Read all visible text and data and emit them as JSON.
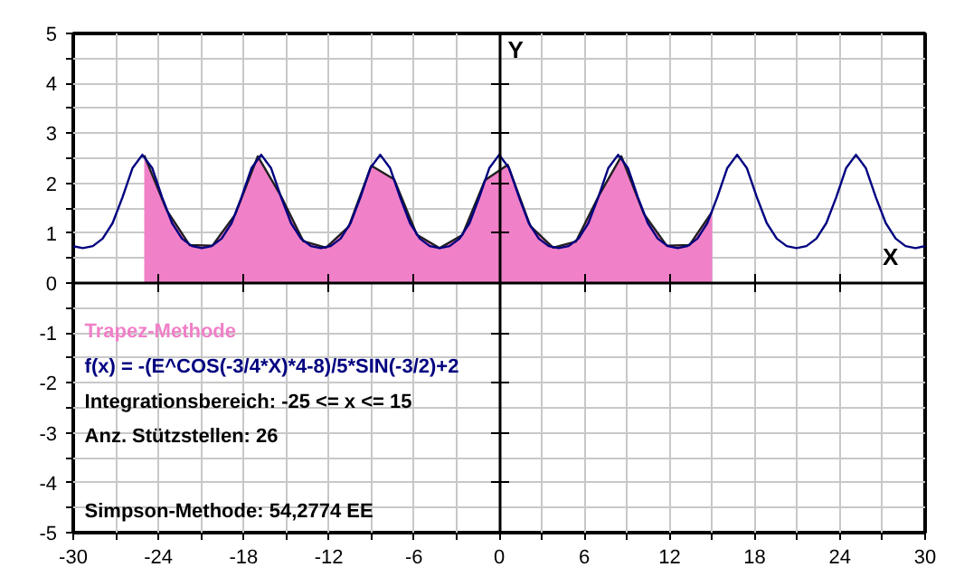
{
  "chart_data": {
    "type": "line",
    "title": "Trapez-Methode",
    "xlabel": "X",
    "ylabel": "Y",
    "annotations": [
      "f(x) = -(E^COS(-3/4*X)*4-8)/5*SIN(-3/2)+2",
      "Integrationsbereich: -25 <= x <= 15",
      "Anz. Stützstellen: 26",
      "Simpson-Methode: 54,2774 EE"
    ],
    "xlim": [
      -30,
      30
    ],
    "ylim": [
      -5,
      5
    ],
    "xticks": [
      -30,
      {
        "value": -27,
        "label": null
      },
      -24,
      {
        "value": -21,
        "label": null
      },
      -18,
      {
        "value": -15,
        "label": null
      },
      -12,
      {
        "value": -9,
        "label": null
      },
      -6,
      {
        "value": -3,
        "label": null
      },
      0,
      {
        "value": 3,
        "label": null
      },
      6,
      {
        "value": 9,
        "label": null
      },
      12,
      {
        "value": 15,
        "label": null
      },
      18,
      {
        "value": 21,
        "label": null
      },
      24,
      {
        "value": 27,
        "label": null
      },
      30
    ],
    "yticks": [
      -5,
      {
        "value": -4.5,
        "label": null
      },
      -4,
      {
        "value": -3.5,
        "label": null
      },
      -3,
      {
        "value": -2.5,
        "label": null
      },
      -2,
      {
        "value": -1.5,
        "label": null
      },
      -1,
      {
        "value": -0.5,
        "label": null
      },
      0,
      {
        "value": 0.5,
        "label": null
      },
      1,
      {
        "value": 1.5,
        "label": null
      },
      2,
      {
        "value": 2.5,
        "label": null
      },
      3,
      {
        "value": 3.5,
        "label": null
      },
      4,
      {
        "value": 4.5,
        "label": null
      },
      5
    ],
    "grid": true,
    "series": [
      {
        "type": "area",
        "color": "#f080c8",
        "x": [
          -25,
          -23.4,
          -21.8,
          -20.2,
          -18.6,
          -17,
          -15.4,
          -13.8,
          -12.2,
          -10.6,
          -9,
          -7.4,
          -5.8,
          -4.2,
          -2.6,
          -1,
          0.6,
          2.2,
          3.8,
          5.4,
          7,
          8.6,
          10.2,
          11.8,
          13.4,
          15
        ],
        "values": [
          2.56,
          1.45,
          0.76,
          0.75,
          1.37,
          2.54,
          1.76,
          0.84,
          0.71,
          1.13,
          2.35,
          2.08,
          0.97,
          0.7,
          0.96,
          2.06,
          2.37,
          1.14,
          0.71,
          0.83,
          1.74,
          2.54,
          1.38,
          0.75,
          0.76,
          1.43
        ]
      },
      {
        "color": "#000080",
        "x": [
          -30,
          -29.32,
          -28.62,
          -27.93,
          -27.23,
          -26.53,
          -25.83,
          -25.13,
          -24.43,
          -23.74,
          -23.04,
          -22.34,
          -21.64,
          -20.94,
          -20.25,
          -19.55,
          -18.85,
          -18.15,
          -17.45,
          -16.76,
          -16.06,
          -15.36,
          -14.66,
          -13.96,
          -13.26,
          -12.57,
          -11.87,
          -11.17,
          -10.47,
          -9.77,
          -9.08,
          -8.38,
          -7.68,
          -6.98,
          -6.28,
          -5.59,
          -4.89,
          -4.19,
          -3.49,
          -2.79,
          -2.09,
          -1.4,
          -0.7,
          0,
          0.7,
          1.4,
          2.09,
          2.79,
          3.49,
          4.19,
          4.89,
          5.59,
          6.28,
          6.98,
          7.68,
          8.38,
          9.08,
          9.77,
          10.47,
          11.17,
          11.87,
          12.57,
          13.26,
          13.96,
          14.66,
          15.36,
          16.06,
          16.76,
          17.45,
          18.15,
          18.85,
          19.55,
          20.25,
          20.94,
          21.64,
          22.34,
          23.04,
          23.74,
          24.43,
          25.13,
          25.83,
          26.53,
          27.23,
          27.93,
          28.62,
          29.32,
          30
        ],
        "values": [
          0.74,
          0.7,
          0.74,
          0.89,
          1.2,
          1.72,
          2.3,
          2.57,
          2.3,
          1.72,
          1.2,
          0.89,
          0.74,
          0.7,
          0.74,
          0.89,
          1.2,
          1.72,
          2.3,
          2.57,
          2.3,
          1.72,
          1.2,
          0.89,
          0.74,
          0.7,
          0.74,
          0.89,
          1.2,
          1.72,
          2.3,
          2.57,
          2.3,
          1.72,
          1.2,
          0.89,
          0.74,
          0.7,
          0.74,
          0.89,
          1.2,
          1.72,
          2.3,
          2.57,
          2.3,
          1.72,
          1.2,
          0.89,
          0.74,
          0.7,
          0.74,
          0.89,
          1.2,
          1.72,
          2.3,
          2.57,
          2.3,
          1.72,
          1.2,
          0.89,
          0.74,
          0.7,
          0.74,
          0.89,
          1.2,
          1.72,
          2.3,
          2.57,
          2.3,
          1.72,
          1.2,
          0.89,
          0.74,
          0.7,
          0.74,
          0.89,
          1.2,
          1.72,
          2.3,
          2.57,
          2.3,
          1.72,
          1.2,
          0.89,
          0.74,
          0.7,
          0.74
        ]
      }
    ]
  }
}
